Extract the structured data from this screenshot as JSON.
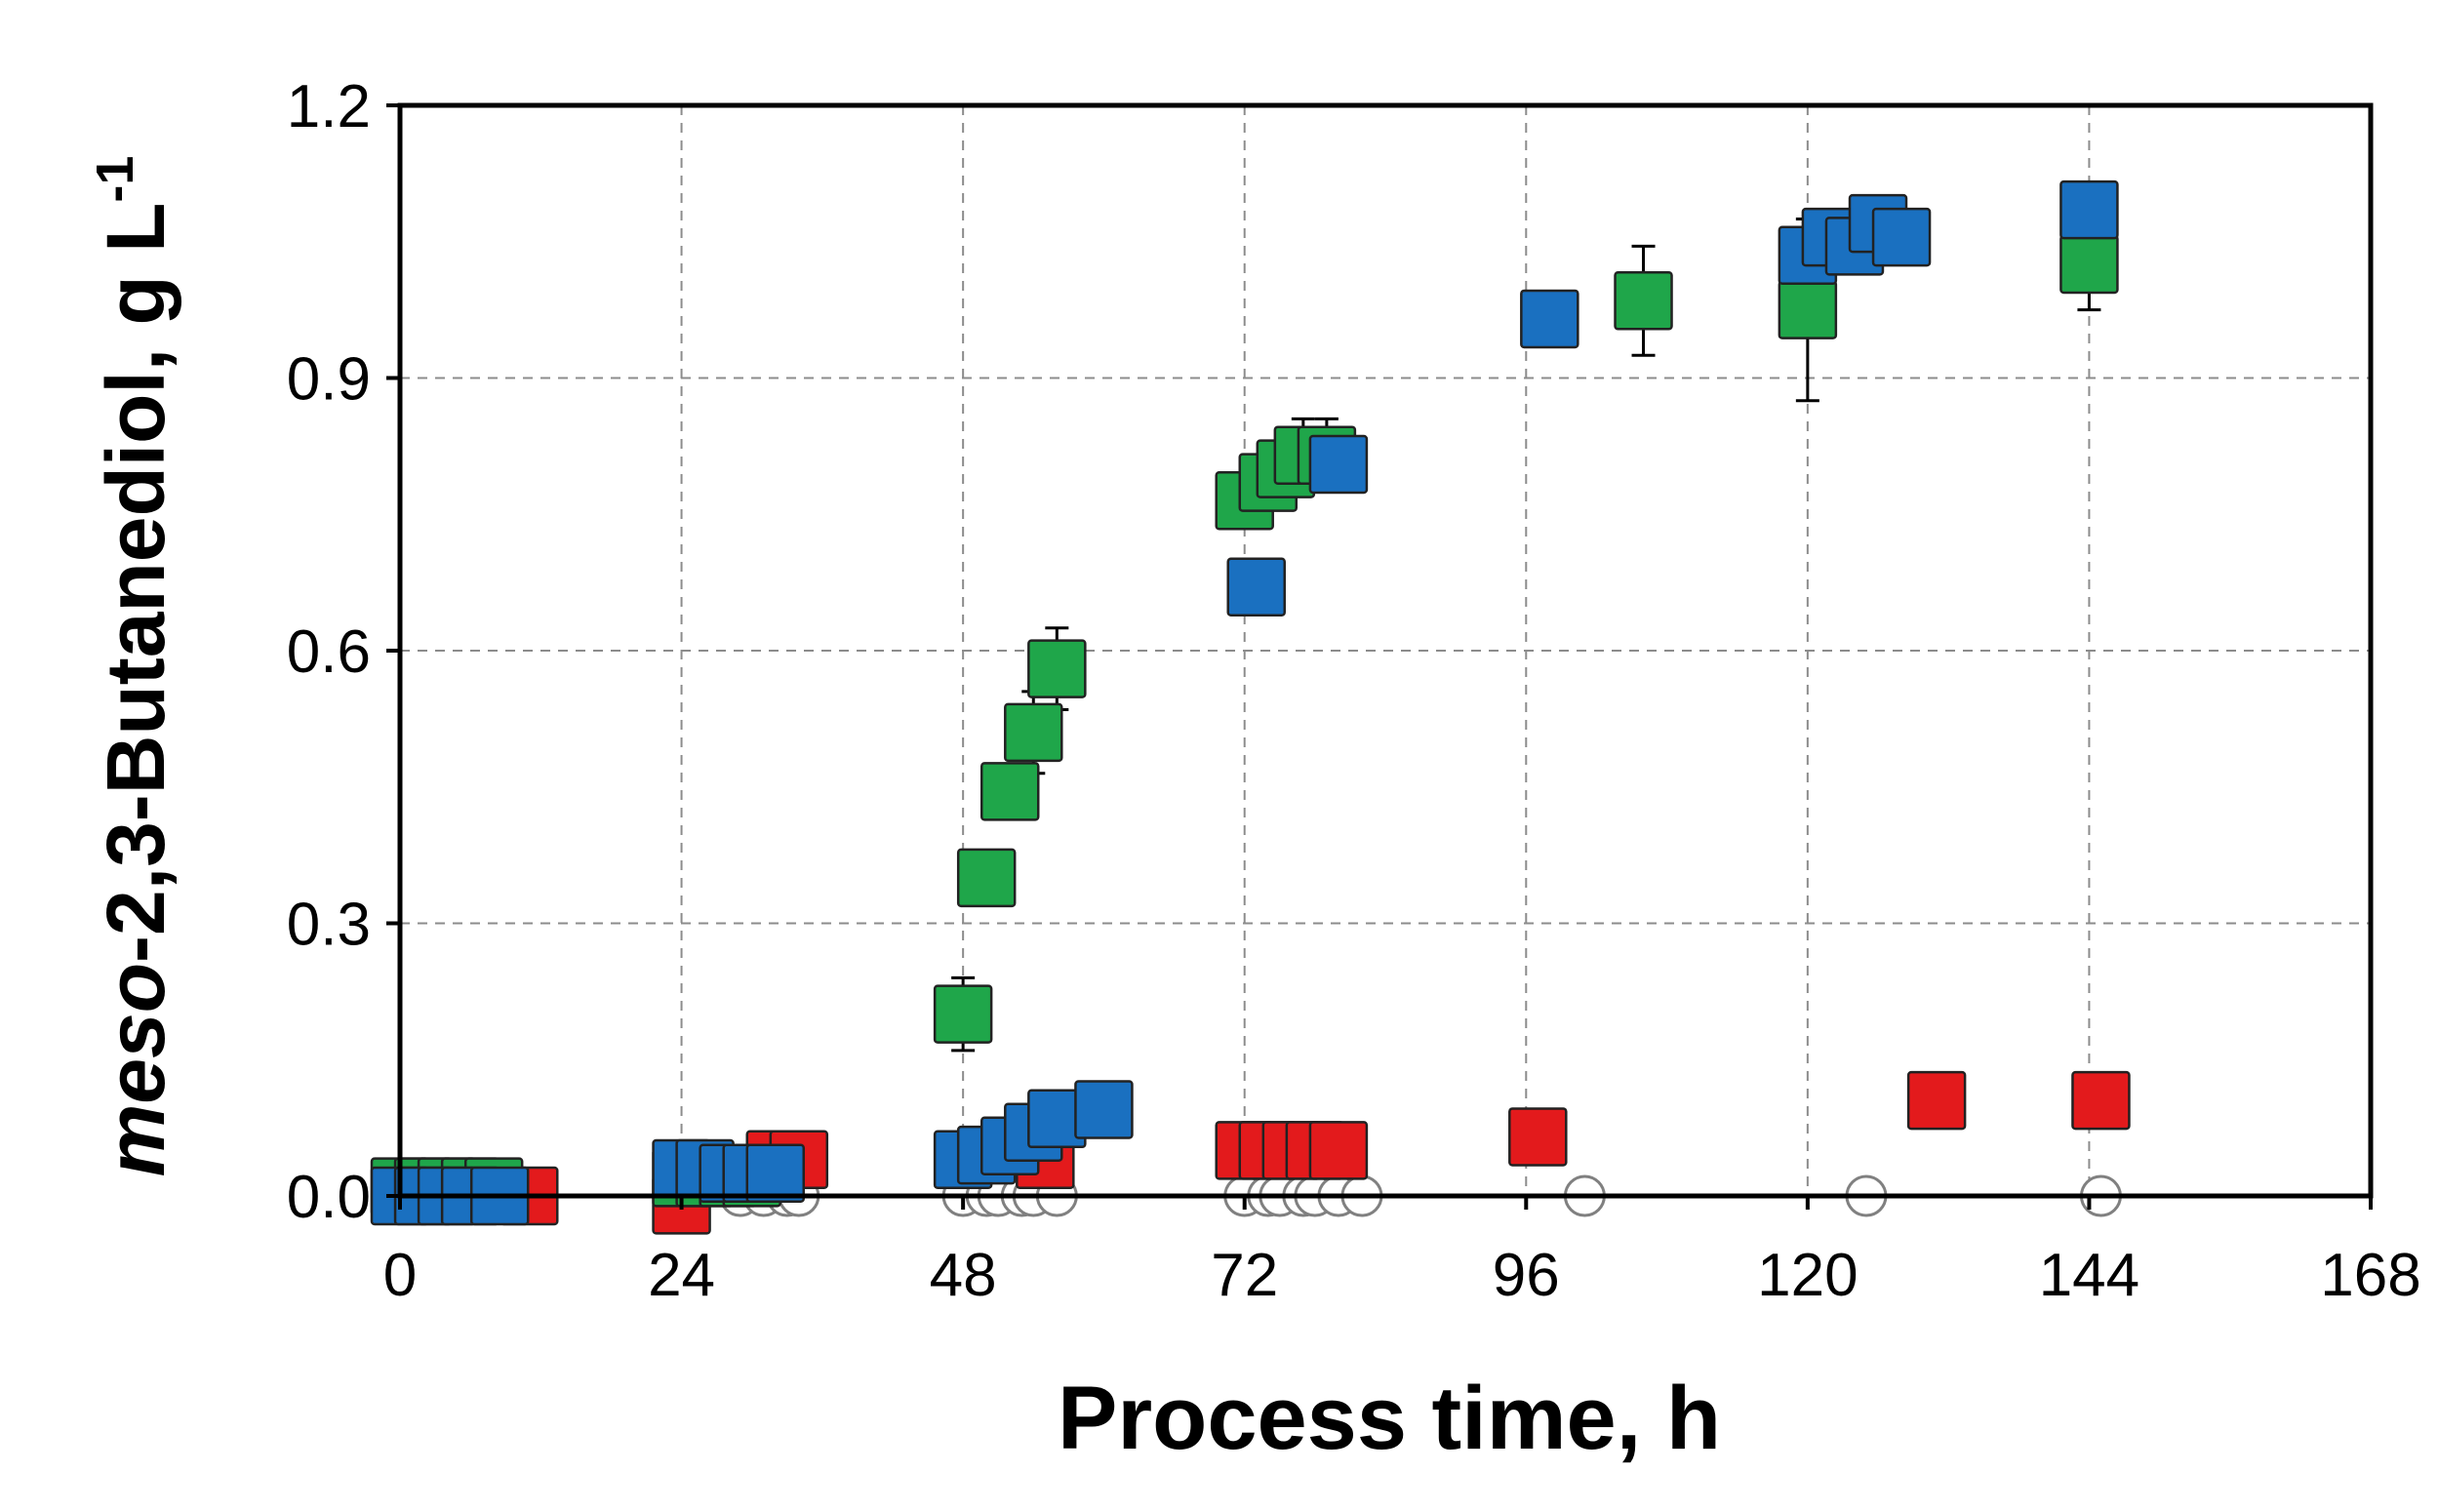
{
  "chart_data": {
    "type": "scatter",
    "title": "",
    "xlabel": "Process time, h",
    "ylabel": {
      "italic_part": "meso",
      "rest": "-2,3-Butanediol, g L",
      "superscript": "-1"
    },
    "xlim": [
      0,
      168
    ],
    "ylim": [
      0,
      1.2
    ],
    "xticks": [
      "0",
      "24",
      "48",
      "72",
      "96",
      "120",
      "144",
      "168"
    ],
    "yticks": [
      "0.0",
      "0.3",
      "0.6",
      "0.9",
      "1.2"
    ],
    "grid": true,
    "legend": "none",
    "series": [
      {
        "marker": "open-circle",
        "color": "#ffffff",
        "edge_color": "#808080",
        "points": [
          {
            "x": 29,
            "y": 0
          },
          {
            "x": 31,
            "y": 0
          },
          {
            "x": 33,
            "y": 0
          },
          {
            "x": 34,
            "y": 0
          },
          {
            "x": 48,
            "y": 0
          },
          {
            "x": 50,
            "y": 0
          },
          {
            "x": 51,
            "y": 0
          },
          {
            "x": 53,
            "y": 0
          },
          {
            "x": 54,
            "y": 0
          },
          {
            "x": 56,
            "y": 0
          },
          {
            "x": 72,
            "y": 0
          },
          {
            "x": 74,
            "y": 0
          },
          {
            "x": 75,
            "y": 0
          },
          {
            "x": 77,
            "y": 0
          },
          {
            "x": 78,
            "y": 0
          },
          {
            "x": 80,
            "y": 0
          },
          {
            "x": 82,
            "y": 0
          },
          {
            "x": 101,
            "y": 0
          },
          {
            "x": 125,
            "y": 0
          },
          {
            "x": 145,
            "y": 0
          }
        ]
      },
      {
        "marker": "square",
        "color": "#e31a1c",
        "points": [
          {
            "x": 11,
            "y": 0
          },
          {
            "x": 24,
            "y": -0.01
          },
          {
            "x": 32,
            "y": 0.04
          },
          {
            "x": 34,
            "y": 0.04
          },
          {
            "x": 55,
            "y": 0.04
          },
          {
            "x": 72,
            "y": 0.05
          },
          {
            "x": 74,
            "y": 0.05
          },
          {
            "x": 76,
            "y": 0.05
          },
          {
            "x": 78,
            "y": 0.05
          },
          {
            "x": 80,
            "y": 0.05
          },
          {
            "x": 97,
            "y": 0.065
          },
          {
            "x": 131,
            "y": 0.105
          },
          {
            "x": 145,
            "y": 0.105
          }
        ]
      },
      {
        "marker": "square",
        "color": "#1fa64a",
        "points": [
          {
            "x": 0,
            "y": 0.01
          },
          {
            "x": 2,
            "y": 0.01
          },
          {
            "x": 4,
            "y": 0.01
          },
          {
            "x": 6,
            "y": 0.01
          },
          {
            "x": 8,
            "y": 0.01
          },
          {
            "x": 24,
            "y": 0.02
          },
          {
            "x": 26,
            "y": 0.02
          },
          {
            "x": 28,
            "y": 0.02
          },
          {
            "x": 30,
            "y": 0.02
          },
          {
            "x": 48,
            "y": 0.2,
            "err": 0.04
          },
          {
            "x": 50,
            "y": 0.35
          },
          {
            "x": 52,
            "y": 0.445
          },
          {
            "x": 54,
            "y": 0.51,
            "err": 0.045
          },
          {
            "x": 56,
            "y": 0.58,
            "err": 0.045
          },
          {
            "x": 72,
            "y": 0.765
          },
          {
            "x": 74,
            "y": 0.785
          },
          {
            "x": 75.5,
            "y": 0.8
          },
          {
            "x": 77,
            "y": 0.815,
            "err": 0.04
          },
          {
            "x": 79,
            "y": 0.815,
            "err": 0.04
          },
          {
            "x": 106,
            "y": 0.985,
            "err": 0.06
          },
          {
            "x": 120,
            "y": 0.975,
            "err": 0.1
          },
          {
            "x": 144,
            "y": 1.025,
            "err": 0.05
          }
        ]
      },
      {
        "marker": "square",
        "color": "#1a70c0",
        "points": [
          {
            "x": 0,
            "y": 0
          },
          {
            "x": 2,
            "y": 0
          },
          {
            "x": 4,
            "y": 0
          },
          {
            "x": 6,
            "y": 0
          },
          {
            "x": 8.5,
            "y": 0
          },
          {
            "x": 24,
            "y": 0.03
          },
          {
            "x": 26,
            "y": 0.03
          },
          {
            "x": 28,
            "y": 0.025
          },
          {
            "x": 30,
            "y": 0.025
          },
          {
            "x": 32,
            "y": 0.025
          },
          {
            "x": 48,
            "y": 0.04
          },
          {
            "x": 50,
            "y": 0.045
          },
          {
            "x": 52,
            "y": 0.055
          },
          {
            "x": 54,
            "y": 0.07
          },
          {
            "x": 56,
            "y": 0.085
          },
          {
            "x": 60,
            "y": 0.095
          },
          {
            "x": 73,
            "y": 0.67
          },
          {
            "x": 80,
            "y": 0.805
          },
          {
            "x": 98,
            "y": 0.965
          },
          {
            "x": 120,
            "y": 1.035
          },
          {
            "x": 122,
            "y": 1.055
          },
          {
            "x": 124,
            "y": 1.045
          },
          {
            "x": 126,
            "y": 1.07
          },
          {
            "x": 128,
            "y": 1.055
          },
          {
            "x": 144,
            "y": 1.085
          }
        ]
      }
    ]
  }
}
